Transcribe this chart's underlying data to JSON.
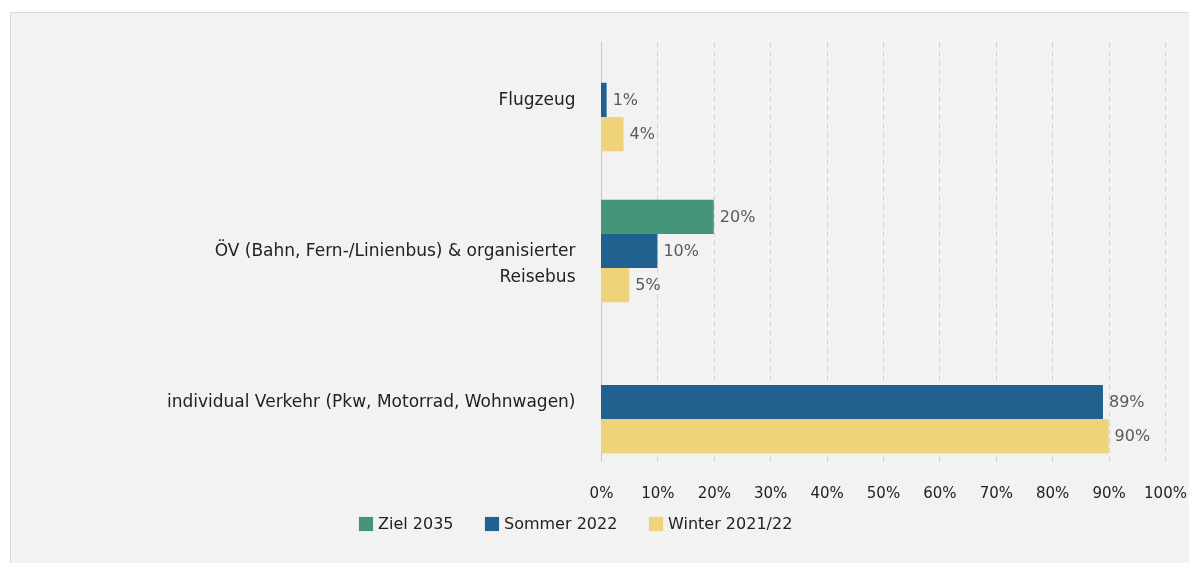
{
  "chart_data": {
    "type": "bar",
    "orientation": "horizontal",
    "categories": [
      "Flugzeug",
      "ÖV (Bahn, Fern-/Linienbus) & organisierter Reisebus",
      "individual Verkehr (Pkw, Motorrad, Wohnwagen)"
    ],
    "series": [
      {
        "name": "Ziel 2035",
        "color": "#45957a",
        "values": [
          null,
          20,
          null
        ],
        "value_labels": [
          null,
          "20%",
          null
        ]
      },
      {
        "name": "Sommer 2022",
        "color": "#21618f",
        "values": [
          1,
          10,
          89
        ],
        "value_labels": [
          "1%",
          "10%",
          "89%"
        ]
      },
      {
        "name": "Winter 2021/22",
        "color": "#f0d27a",
        "values": [
          4,
          5,
          90
        ],
        "value_labels": [
          "4%",
          "5%",
          "90%"
        ]
      }
    ],
    "xlim": [
      0,
      100
    ],
    "xticks": [
      {
        "value": 0,
        "label": "0%"
      },
      {
        "value": 10,
        "label": "10%"
      },
      {
        "value": 20,
        "label": "20%"
      },
      {
        "value": 30,
        "label": "30%"
      },
      {
        "value": 40,
        "label": "40%"
      },
      {
        "value": 50,
        "label": "50%"
      },
      {
        "value": 60,
        "label": "60%"
      },
      {
        "value": 70,
        "label": "70%"
      },
      {
        "value": 80,
        "label": "80%"
      },
      {
        "value": 90,
        "label": "90%"
      },
      {
        "value": 100,
        "label": "100%"
      }
    ],
    "grid": "x",
    "legend": "bottom"
  }
}
